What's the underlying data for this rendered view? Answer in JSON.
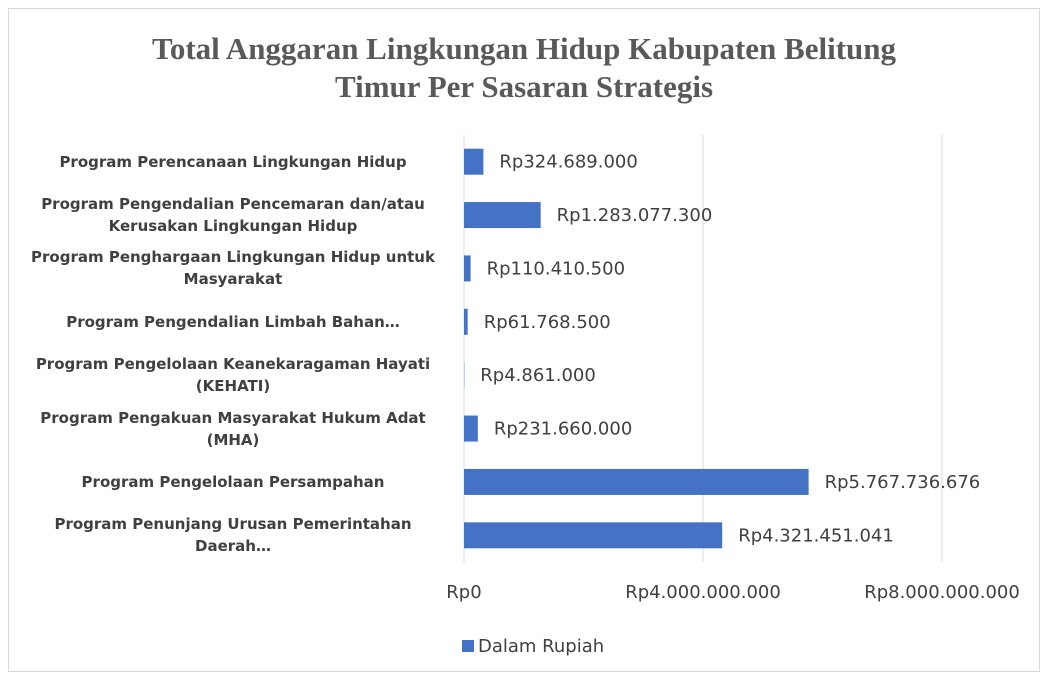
{
  "chart_data": {
    "type": "hbar",
    "title": "Total Anggaran Lingkungan Hidup Kabupaten Belitung Timur Per Sasaran Strategis",
    "categories": [
      "Program Perencanaan Lingkungan Hidup",
      "Program Pengendalian Pencemaran dan/atau Kerusakan Lingkungan Hidup",
      "Program Penghargaan Lingkungan Hidup untuk Masyarakat",
      "Program Pengendalian Limbah Bahan…",
      "Program Pengelolaan Keanekaragaman Hayati (KEHATI)",
      "Program Pengakuan Masyarakat Hukum Adat (MHA)",
      "Program Pengelolaan Persampahan",
      "Program Penunjang Urusan Pemerintahan Daerah…"
    ],
    "series": [
      {
        "name": "Dalam Rupiah",
        "color": "#4472c4",
        "values": [
          324689000,
          1283077300,
          110410500,
          61768500,
          4861000,
          231660000,
          5767736676,
          4321451041
        ],
        "value_labels": [
          "Rp324.689.000",
          "Rp1.283.077.300",
          "Rp110.410.500",
          "Rp61.768.500",
          "Rp4.861.000",
          "Rp231.660.000",
          "Rp5.767.736.676",
          "Rp4.321.451.041"
        ]
      }
    ],
    "xlim": [
      0,
      8000000000
    ],
    "xticks": [
      {
        "value": 0,
        "label": "Rp0"
      },
      {
        "value": 4000000000,
        "label": "Rp4.000.000.000"
      },
      {
        "value": 8000000000,
        "label": "Rp8.000.000.000"
      }
    ],
    "grid": true,
    "legend": "bottom"
  }
}
